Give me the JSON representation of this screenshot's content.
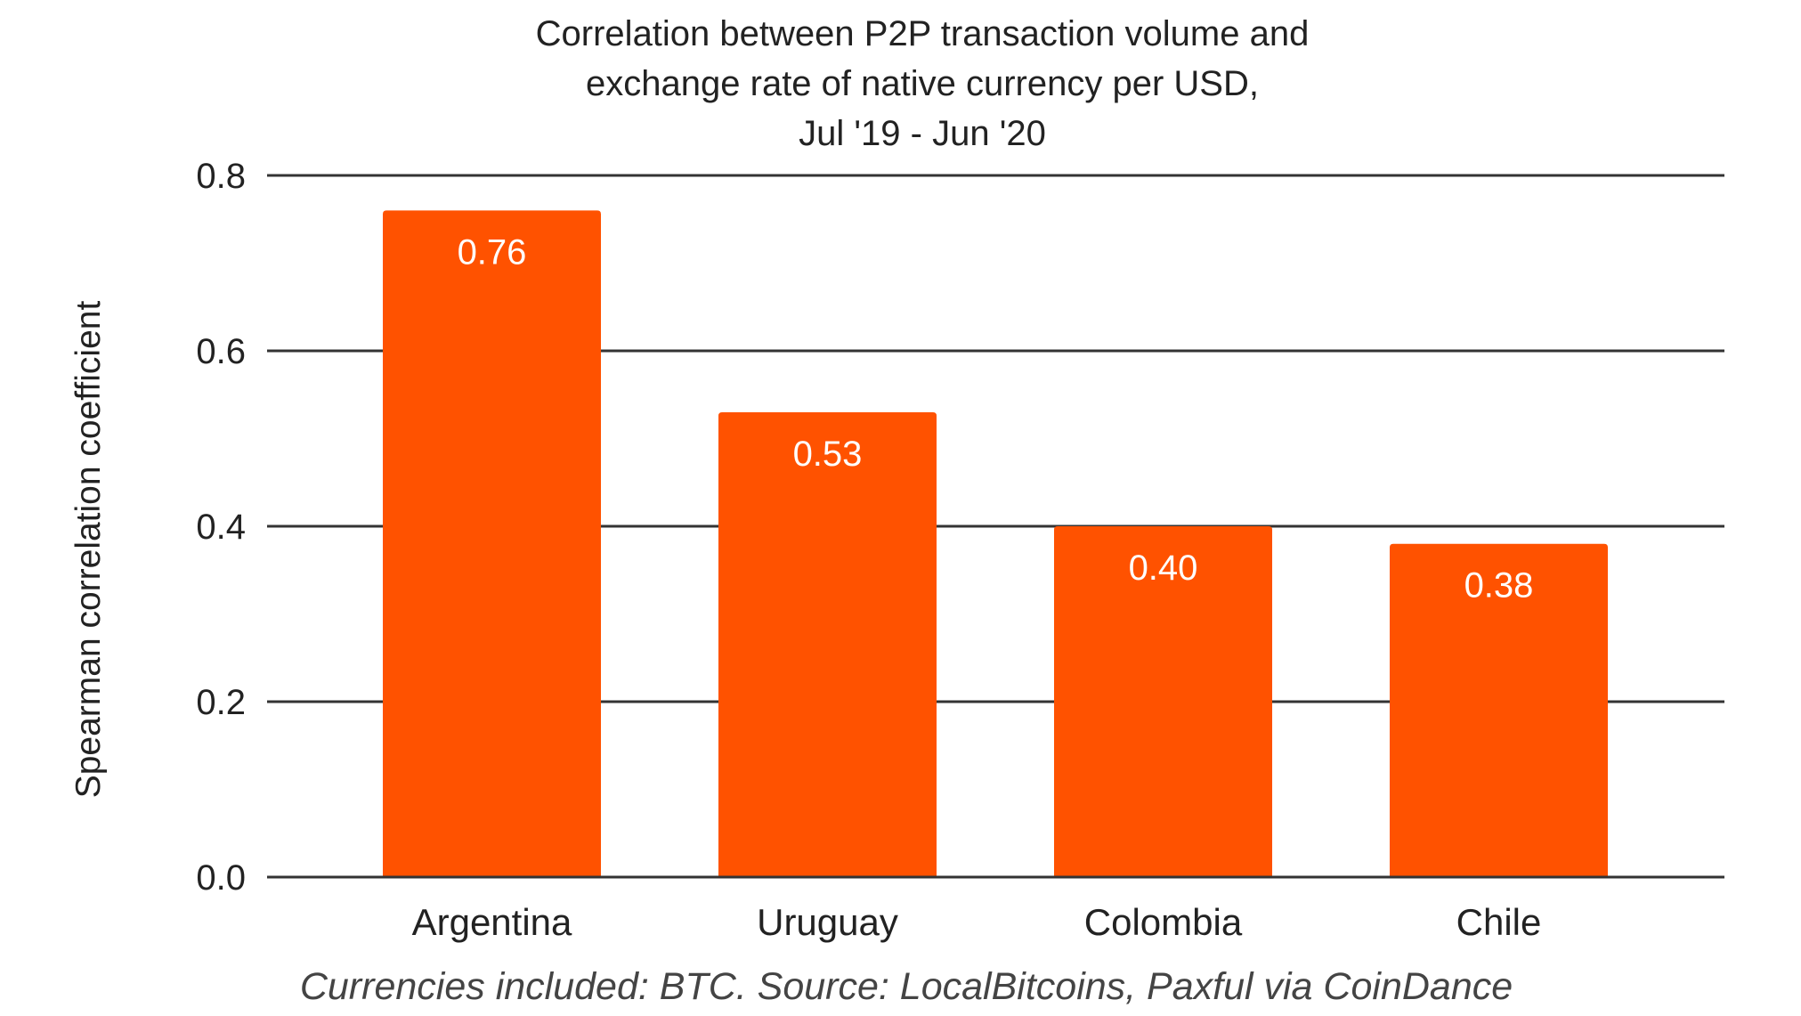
{
  "chart_data": {
    "type": "bar",
    "title_lines": [
      "Correlation between P2P transaction volume and",
      "exchange rate of native currency per USD,",
      "Jul '19 - Jun '20"
    ],
    "categories": [
      "Argentina",
      "Uruguay",
      "Colombia",
      "Chile"
    ],
    "values": [
      0.76,
      0.53,
      0.4,
      0.38
    ],
    "value_labels": [
      "0.76",
      "0.53",
      "0.40",
      "0.38"
    ],
    "xlabel": "",
    "ylabel": "Spearman correlation coefficient",
    "ylim": [
      0,
      0.8
    ],
    "yticks": [
      0.0,
      0.2,
      0.4,
      0.6,
      0.8
    ],
    "ytick_labels": [
      "0.0",
      "0.2",
      "0.4",
      "0.6",
      "0.8"
    ],
    "grid": true,
    "bar_color": "#FF5200",
    "footnote": "Currencies included: BTC. Source: LocalBitcoins, Paxful via CoinDance"
  }
}
